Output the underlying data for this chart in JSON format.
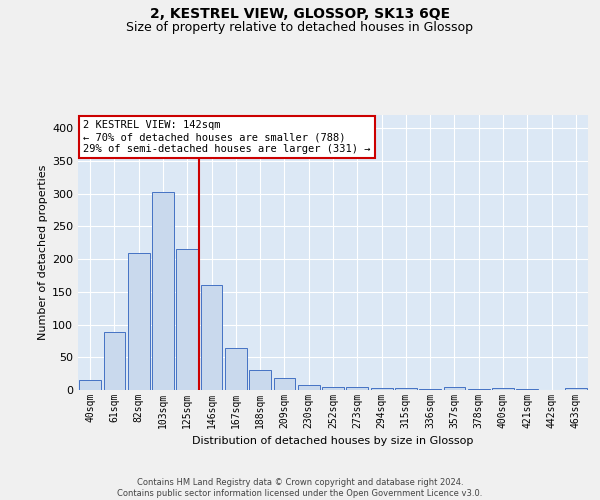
{
  "title": "2, KESTREL VIEW, GLOSSOP, SK13 6QE",
  "subtitle": "Size of property relative to detached houses in Glossop",
  "xlabel": "Distribution of detached houses by size in Glossop",
  "ylabel": "Number of detached properties",
  "bin_labels": [
    "40sqm",
    "61sqm",
    "82sqm",
    "103sqm",
    "125sqm",
    "146sqm",
    "167sqm",
    "188sqm",
    "209sqm",
    "230sqm",
    "252sqm",
    "273sqm",
    "294sqm",
    "315sqm",
    "336sqm",
    "357sqm",
    "378sqm",
    "400sqm",
    "421sqm",
    "442sqm",
    "463sqm"
  ],
  "bar_values": [
    15,
    88,
    210,
    303,
    215,
    160,
    64,
    31,
    19,
    8,
    5,
    4,
    3,
    3,
    2,
    4,
    2,
    3,
    2,
    0,
    3
  ],
  "bar_color": "#c9d9ed",
  "bar_edge_color": "#4472c4",
  "vline_x_index": 4.5,
  "vline_color": "#cc0000",
  "annotation_text": "2 KESTREL VIEW: 142sqm\n← 70% of detached houses are smaller (788)\n29% of semi-detached houses are larger (331) →",
  "annotation_box_color": "#ffffff",
  "annotation_box_edge": "#cc0000",
  "footer_text": "Contains HM Land Registry data © Crown copyright and database right 2024.\nContains public sector information licensed under the Open Government Licence v3.0.",
  "fig_facecolor": "#f0f0f0",
  "background_color": "#dce8f5",
  "ylim": [
    0,
    420
  ],
  "yticks": [
    0,
    50,
    100,
    150,
    200,
    250,
    300,
    350,
    400
  ],
  "grid_color": "#ffffff",
  "title_fontsize": 10,
  "subtitle_fontsize": 9,
  "xlabel_fontsize": 8,
  "ylabel_fontsize": 8,
  "tick_fontsize": 7,
  "footer_fontsize": 6,
  "ann_fontsize": 7.5
}
